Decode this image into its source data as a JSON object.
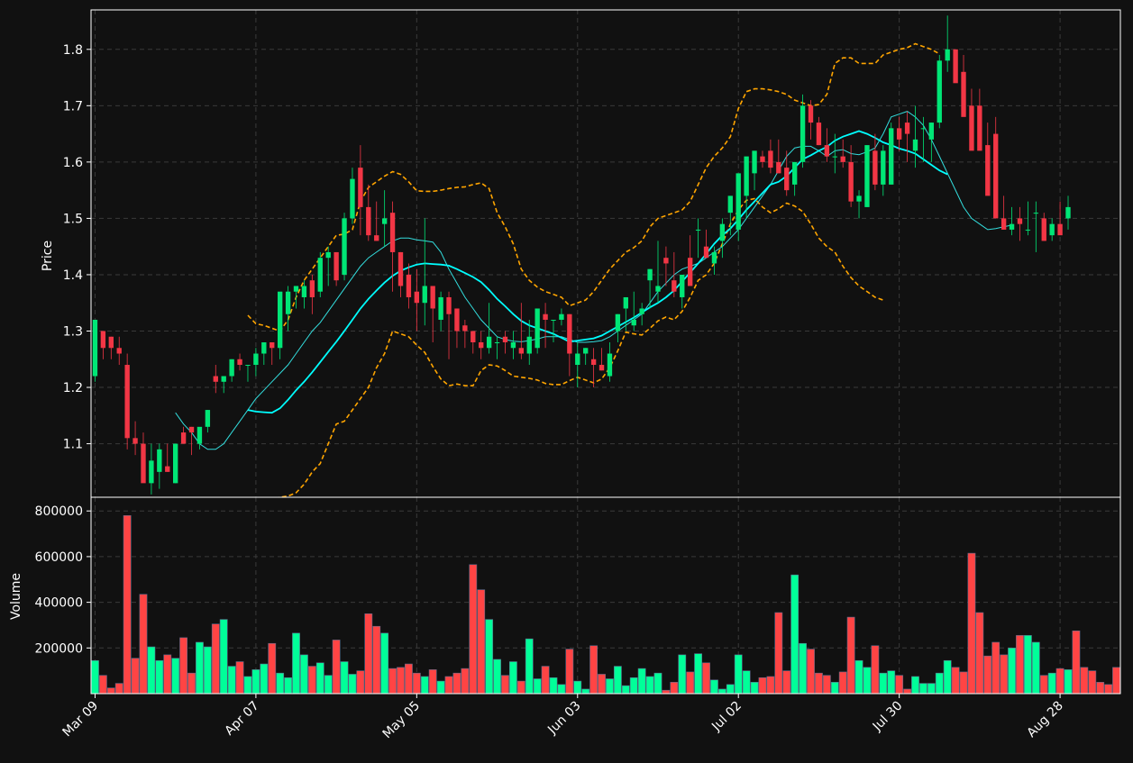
{
  "colors": {
    "background": "#111111",
    "up": "#00e676",
    "down": "#f23645",
    "volume_up": "#00ff99",
    "volume_down": "#ff4444",
    "sma_fast": "#33dddd",
    "sma_slow": "#00ffff",
    "bollinger": "#ffa500",
    "grid": "#3a3a3a",
    "text": "#ffffff"
  },
  "chart_data": {
    "type": "candlestick",
    "title": "",
    "price_panel": {
      "ylabel": "Price",
      "ylim": [
        1.005,
        1.87
      ],
      "yticks": [
        1.1,
        1.2,
        1.3,
        1.4,
        1.5,
        1.6,
        1.7,
        1.8
      ],
      "ytick_labels": [
        "1.1",
        "1.2",
        "1.3",
        "1.4",
        "1.5",
        "1.6",
        "1.7",
        "1.8"
      ],
      "grid": true
    },
    "volume_panel": {
      "ylabel": "Volume",
      "ylim": [
        0,
        860000
      ],
      "yticks": [
        200000,
        400000,
        600000,
        800000
      ],
      "ytick_labels": [
        "200000",
        "400000",
        "600000",
        "800000"
      ],
      "grid": true
    },
    "x": {
      "xlim": [
        -0.5,
        127.5
      ],
      "tick_indices": [
        0,
        20,
        40,
        60,
        80,
        100,
        120
      ],
      "tick_labels": [
        "Mar 09",
        "Apr 07",
        "May 05",
        "Jun 03",
        "Jul 02",
        "Jul 30",
        "Aug 28"
      ]
    },
    "candles": {
      "open": [
        1.22,
        1.3,
        1.29,
        1.27,
        1.24,
        1.11,
        1.1,
        1.03,
        1.05,
        1.06,
        1.03,
        1.12,
        1.13,
        1.1,
        1.13,
        1.22,
        1.21,
        1.22,
        1.25,
        1.24,
        1.24,
        1.26,
        1.28,
        1.27,
        1.33,
        1.37,
        1.36,
        1.39,
        1.37,
        1.43,
        1.44,
        1.4,
        1.5,
        1.59,
        1.52,
        1.47,
        1.49,
        1.51,
        1.44,
        1.4,
        1.37,
        1.35,
        1.38,
        1.32,
        1.36,
        1.34,
        1.31,
        1.3,
        1.28,
        1.27,
        1.28,
        1.29,
        1.27,
        1.27,
        1.26,
        1.27,
        1.33,
        1.32,
        1.32,
        1.33,
        1.24,
        1.26,
        1.25,
        1.24,
        1.22,
        1.3,
        1.34,
        1.31,
        1.33,
        1.39,
        1.37,
        1.43,
        1.39,
        1.36,
        1.43,
        1.48,
        1.45,
        1.42,
        1.46,
        1.51,
        1.48,
        1.54,
        1.58,
        1.61,
        1.62,
        1.6,
        1.59,
        1.56,
        1.6,
        1.7,
        1.67,
        1.63,
        1.61,
        1.61,
        1.6,
        1.53,
        1.52,
        1.62,
        1.56,
        1.56,
        1.66,
        1.67,
        1.62,
        1.66,
        1.64,
        1.67,
        1.78,
        1.8,
        1.76,
        1.7,
        1.7,
        1.63,
        1.65,
        1.5,
        1.48,
        1.5,
        1.48,
        1.51,
        1.5,
        1.47,
        1.49,
        1.5
      ],
      "high": [
        1.32,
        1.3,
        1.29,
        1.29,
        1.26,
        1.14,
        1.12,
        1.1,
        1.1,
        1.1,
        1.1,
        1.13,
        1.13,
        1.12,
        1.16,
        1.24,
        1.22,
        1.25,
        1.26,
        1.24,
        1.27,
        1.28,
        1.28,
        1.33,
        1.38,
        1.38,
        1.39,
        1.4,
        1.44,
        1.45,
        1.44,
        1.51,
        1.59,
        1.63,
        1.56,
        1.53,
        1.55,
        1.53,
        1.44,
        1.42,
        1.41,
        1.5,
        1.38,
        1.37,
        1.37,
        1.34,
        1.32,
        1.3,
        1.3,
        1.35,
        1.29,
        1.3,
        1.3,
        1.35,
        1.32,
        1.33,
        1.35,
        1.32,
        1.34,
        1.33,
        1.28,
        1.27,
        1.27,
        1.27,
        1.28,
        1.33,
        1.36,
        1.37,
        1.35,
        1.41,
        1.46,
        1.45,
        1.44,
        1.39,
        1.47,
        1.5,
        1.48,
        1.45,
        1.5,
        1.54,
        1.56,
        1.58,
        1.6,
        1.62,
        1.64,
        1.64,
        1.62,
        1.6,
        1.72,
        1.71,
        1.68,
        1.66,
        1.65,
        1.64,
        1.63,
        1.55,
        1.59,
        1.65,
        1.63,
        1.67,
        1.68,
        1.69,
        1.7,
        1.68,
        1.67,
        1.79,
        1.86,
        1.8,
        1.79,
        1.73,
        1.73,
        1.67,
        1.68,
        1.54,
        1.52,
        1.52,
        1.53,
        1.53,
        1.51,
        1.5,
        1.53,
        1.54
      ],
      "low": [
        1.21,
        1.25,
        1.25,
        1.24,
        1.09,
        1.08,
        1.05,
        1.01,
        1.02,
        1.05,
        1.03,
        1.1,
        1.08,
        1.09,
        1.12,
        1.19,
        1.19,
        1.21,
        1.23,
        1.21,
        1.22,
        1.24,
        1.24,
        1.25,
        1.3,
        1.34,
        1.34,
        1.33,
        1.36,
        1.38,
        1.38,
        1.39,
        1.49,
        1.47,
        1.46,
        1.46,
        1.45,
        1.37,
        1.36,
        1.34,
        1.3,
        1.31,
        1.28,
        1.3,
        1.25,
        1.27,
        1.27,
        1.26,
        1.25,
        1.26,
        1.25,
        1.26,
        1.25,
        1.25,
        1.24,
        1.26,
        1.27,
        1.28,
        1.31,
        1.22,
        1.2,
        1.24,
        1.2,
        1.23,
        1.21,
        1.28,
        1.3,
        1.3,
        1.31,
        1.34,
        1.35,
        1.38,
        1.36,
        1.34,
        1.39,
        1.43,
        1.43,
        1.4,
        1.43,
        1.47,
        1.46,
        1.5,
        1.55,
        1.59,
        1.58,
        1.58,
        1.54,
        1.54,
        1.59,
        1.64,
        1.63,
        1.6,
        1.58,
        1.59,
        1.52,
        1.5,
        1.52,
        1.55,
        1.54,
        1.56,
        1.62,
        1.6,
        1.59,
        1.6,
        1.6,
        1.66,
        1.76,
        1.76,
        1.7,
        1.67,
        1.65,
        1.6,
        1.56,
        1.48,
        1.47,
        1.46,
        1.47,
        1.44,
        1.46,
        1.46,
        1.49,
        1.48
      ],
      "close": [
        1.32,
        1.27,
        1.27,
        1.26,
        1.11,
        1.1,
        1.03,
        1.07,
        1.09,
        1.05,
        1.1,
        1.1,
        1.12,
        1.13,
        1.16,
        1.21,
        1.22,
        1.25,
        1.24,
        1.24,
        1.26,
        1.28,
        1.27,
        1.37,
        1.37,
        1.38,
        1.38,
        1.36,
        1.43,
        1.44,
        1.39,
        1.5,
        1.57,
        1.52,
        1.47,
        1.46,
        1.5,
        1.44,
        1.38,
        1.36,
        1.35,
        1.38,
        1.34,
        1.36,
        1.33,
        1.3,
        1.3,
        1.28,
        1.27,
        1.29,
        1.28,
        1.28,
        1.28,
        1.26,
        1.29,
        1.34,
        1.32,
        1.32,
        1.33,
        1.26,
        1.26,
        1.27,
        1.24,
        1.23,
        1.26,
        1.33,
        1.36,
        1.32,
        1.34,
        1.41,
        1.38,
        1.42,
        1.37,
        1.4,
        1.38,
        1.48,
        1.43,
        1.44,
        1.49,
        1.54,
        1.58,
        1.61,
        1.62,
        1.6,
        1.59,
        1.58,
        1.55,
        1.6,
        1.7,
        1.67,
        1.63,
        1.61,
        1.61,
        1.6,
        1.53,
        1.54,
        1.63,
        1.56,
        1.62,
        1.66,
        1.64,
        1.65,
        1.64,
        1.66,
        1.67,
        1.78,
        1.8,
        1.74,
        1.68,
        1.62,
        1.62,
        1.54,
        1.5,
        1.48,
        1.49,
        1.49,
        1.48,
        1.51,
        1.46,
        1.49,
        1.47,
        1.52
      ]
    },
    "volume": [
      145000,
      80000,
      25000,
      45000,
      780000,
      155000,
      435000,
      205000,
      145000,
      170000,
      155000,
      245000,
      90000,
      225000,
      205000,
      305000,
      325000,
      120000,
      140000,
      75000,
      105000,
      130000,
      220000,
      90000,
      70000,
      265000,
      170000,
      120000,
      135000,
      80000,
      235000,
      140000,
      85000,
      100000,
      350000,
      295000,
      265000,
      110000,
      115000,
      130000,
      90000,
      75000,
      105000,
      55000,
      75000,
      90000,
      110000,
      565000,
      455000,
      325000,
      150000,
      80000,
      140000,
      55000,
      240000,
      65000,
      120000,
      70000,
      40000,
      195000,
      55000,
      20000,
      210000,
      85000,
      65000,
      120000,
      35000,
      70000,
      110000,
      75000,
      90000,
      15000,
      50000,
      170000,
      95000,
      175000,
      135000,
      60000,
      20000,
      40000,
      170000,
      100000,
      50000,
      70000,
      75000,
      355000,
      100000,
      520000,
      220000,
      195000,
      90000,
      80000,
      50000,
      95000,
      335000,
      145000,
      115000,
      210000,
      90000,
      100000,
      80000,
      20000,
      75000,
      45000,
      45000,
      90000,
      145000,
      115000,
      95000,
      615000,
      355000,
      165000,
      225000,
      170000,
      200000,
      255000,
      255000,
      225000,
      80000,
      90000,
      110000,
      105000,
      275000,
      115000,
      100000,
      50000,
      40000,
      115000
    ],
    "series": [
      {
        "name": "",
        "kind": "sma_fast",
        "start_index": 10,
        "values": [
          1.155,
          1.135,
          1.12,
          1.1,
          1.09,
          1.09,
          1.1,
          1.12,
          1.14,
          1.16,
          1.18,
          1.195,
          1.21,
          1.225,
          1.24,
          1.26,
          1.28,
          1.3,
          1.315,
          1.335,
          1.355,
          1.375,
          1.395,
          1.415,
          1.43,
          1.44,
          1.45,
          1.46,
          1.465,
          1.465,
          1.462,
          1.46,
          1.458,
          1.44,
          1.41,
          1.385,
          1.36,
          1.34,
          1.32,
          1.305,
          1.29,
          1.285,
          1.282,
          1.281,
          1.283,
          1.286,
          1.29,
          1.29,
          1.29,
          1.285,
          1.28,
          1.28,
          1.281,
          1.283,
          1.29,
          1.3,
          1.31,
          1.32,
          1.33,
          1.35,
          1.37,
          1.385,
          1.4,
          1.41,
          1.415,
          1.42,
          1.43,
          1.44,
          1.45,
          1.465,
          1.48,
          1.5,
          1.52,
          1.54,
          1.56,
          1.585,
          1.61,
          1.625,
          1.628,
          1.628,
          1.62,
          1.61,
          1.62,
          1.622,
          1.615,
          1.613,
          1.618,
          1.625,
          1.65,
          1.68,
          1.685,
          1.69,
          1.68,
          1.665,
          1.64,
          1.61,
          1.58,
          1.55,
          1.52,
          1.5,
          1.49,
          1.48,
          1.482,
          1.485,
          1.488
        ]
      },
      {
        "name": "",
        "kind": "sma_slow",
        "start_index": 19,
        "values": [
          1.16,
          1.157,
          1.156,
          1.155,
          1.163,
          1.178,
          1.195,
          1.21,
          1.227,
          1.245,
          1.263,
          1.281,
          1.3,
          1.32,
          1.34,
          1.357,
          1.372,
          1.386,
          1.398,
          1.407,
          1.413,
          1.418,
          1.42,
          1.419,
          1.418,
          1.416,
          1.41,
          1.403,
          1.396,
          1.387,
          1.373,
          1.357,
          1.344,
          1.33,
          1.318,
          1.31,
          1.305,
          1.3,
          1.295,
          1.288,
          1.281,
          1.283,
          1.285,
          1.287,
          1.292,
          1.3,
          1.308,
          1.316,
          1.324,
          1.333,
          1.342,
          1.35,
          1.36,
          1.372,
          1.388,
          1.404,
          1.42,
          1.437,
          1.455,
          1.47,
          1.482,
          1.498,
          1.515,
          1.53,
          1.545,
          1.56,
          1.565,
          1.575,
          1.59,
          1.605,
          1.612,
          1.62,
          1.627,
          1.638,
          1.645,
          1.65,
          1.655,
          1.65,
          1.643,
          1.635,
          1.63,
          1.624,
          1.62,
          1.615,
          1.605,
          1.595,
          1.585,
          1.578
        ]
      },
      {
        "name": "",
        "kind": "bollinger_upper",
        "start_index": 19,
        "values": [
          1.328,
          1.313,
          1.31,
          1.305,
          1.3,
          1.32,
          1.36,
          1.39,
          1.41,
          1.43,
          1.45,
          1.47,
          1.472,
          1.48,
          1.53,
          1.555,
          1.565,
          1.575,
          1.583,
          1.578,
          1.565,
          1.549,
          1.548,
          1.548,
          1.55,
          1.553,
          1.555,
          1.556,
          1.56,
          1.563,
          1.553,
          1.51,
          1.485,
          1.455,
          1.41,
          1.39,
          1.378,
          1.37,
          1.365,
          1.36,
          1.345,
          1.35,
          1.355,
          1.37,
          1.39,
          1.41,
          1.425,
          1.44,
          1.448,
          1.46,
          1.485,
          1.5,
          1.505,
          1.51,
          1.515,
          1.53,
          1.56,
          1.59,
          1.61,
          1.625,
          1.645,
          1.695,
          1.725,
          1.73,
          1.73,
          1.728,
          1.725,
          1.72,
          1.71,
          1.705,
          1.7,
          1.702,
          1.72,
          1.775,
          1.785,
          1.785,
          1.775,
          1.775,
          1.775,
          1.79,
          1.795,
          1.8,
          1.803,
          1.81,
          1.805,
          1.8,
          1.792
        ]
      },
      {
        "name": "",
        "kind": "bollinger_lower",
        "start_index": 19,
        "values": [
          0.99,
          1.0,
          1.002,
          1.003,
          1.005,
          1.007,
          1.013,
          1.028,
          1.05,
          1.065,
          1.1,
          1.135,
          1.14,
          1.16,
          1.18,
          1.2,
          1.235,
          1.26,
          1.3,
          1.295,
          1.29,
          1.275,
          1.262,
          1.237,
          1.215,
          1.203,
          1.206,
          1.203,
          1.203,
          1.23,
          1.24,
          1.238,
          1.23,
          1.22,
          1.218,
          1.216,
          1.213,
          1.207,
          1.205,
          1.205,
          1.212,
          1.218,
          1.213,
          1.208,
          1.215,
          1.235,
          1.265,
          1.298,
          1.295,
          1.293,
          1.305,
          1.318,
          1.325,
          1.32,
          1.335,
          1.36,
          1.39,
          1.4,
          1.42,
          1.455,
          1.49,
          1.515,
          1.532,
          1.535,
          1.52,
          1.51,
          1.517,
          1.527,
          1.522,
          1.512,
          1.49,
          1.465,
          1.45,
          1.44,
          1.415,
          1.395,
          1.38,
          1.37,
          1.36,
          1.355
        ]
      }
    ]
  }
}
